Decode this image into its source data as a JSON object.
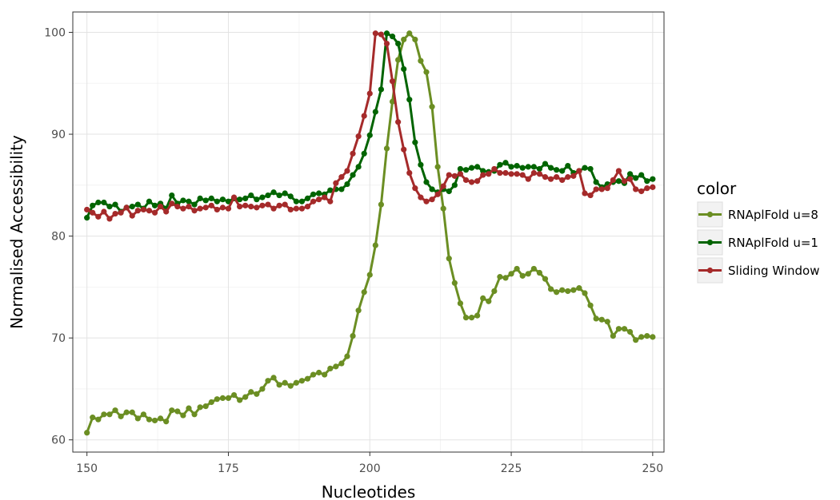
{
  "chart_data": {
    "type": "line",
    "xlabel": "Nucleotides",
    "ylabel": "Normalised Accessibility",
    "xlim": [
      147.5,
      252
    ],
    "ylim": [
      58.8,
      102
    ],
    "x_ticks": [
      150,
      175,
      200,
      225,
      250
    ],
    "y_ticks": [
      60,
      70,
      80,
      90,
      100
    ],
    "grid": true,
    "legend": {
      "title": "color",
      "position": "right"
    },
    "x": [
      150,
      151,
      152,
      153,
      154,
      155,
      156,
      157,
      158,
      159,
      160,
      161,
      162,
      163,
      164,
      165,
      166,
      167,
      168,
      169,
      170,
      171,
      172,
      173,
      174,
      175,
      176,
      177,
      178,
      179,
      180,
      181,
      182,
      183,
      184,
      185,
      186,
      187,
      188,
      189,
      190,
      191,
      192,
      193,
      194,
      195,
      196,
      197,
      198,
      199,
      200,
      201,
      202,
      203,
      204,
      205,
      206,
      207,
      208,
      209,
      210,
      211,
      212,
      213,
      214,
      215,
      216,
      217,
      218,
      219,
      220,
      221,
      222,
      223,
      224,
      225,
      226,
      227,
      228,
      229,
      230,
      231,
      232,
      233,
      234,
      235,
      236,
      237,
      238,
      239,
      240,
      241,
      242,
      243,
      244,
      245,
      246,
      247,
      248,
      249,
      250
    ],
    "series": [
      {
        "name": "RNAplFold u=8",
        "color": "#6b8e23",
        "values": [
          60.7,
          62.2,
          62.0,
          62.5,
          62.5,
          62.9,
          62.3,
          62.7,
          62.7,
          62.1,
          62.5,
          62.0,
          61.9,
          62.1,
          61.8,
          62.9,
          62.8,
          62.4,
          63.1,
          62.5,
          63.2,
          63.3,
          63.7,
          64.0,
          64.1,
          64.1,
          64.4,
          63.9,
          64.2,
          64.7,
          64.5,
          65.0,
          65.8,
          66.1,
          65.4,
          65.6,
          65.3,
          65.6,
          65.8,
          66.0,
          66.4,
          66.6,
          66.4,
          67.0,
          67.2,
          67.5,
          68.2,
          70.2,
          72.7,
          74.5,
          76.2,
          79.1,
          83.1,
          88.6,
          93.2,
          97.3,
          99.3,
          99.9,
          99.3,
          97.2,
          96.1,
          92.7,
          86.8,
          82.7,
          77.8,
          75.4,
          73.4,
          72.0,
          72.0,
          72.2,
          73.9,
          73.6,
          74.6,
          76.0,
          75.9,
          76.3,
          76.8,
          76.1,
          76.3,
          76.8,
          76.4,
          75.8,
          74.8,
          74.5,
          74.7,
          74.6,
          74.7,
          74.9,
          74.4,
          73.2,
          71.9,
          71.8,
          71.6,
          70.2,
          70.9,
          70.9,
          70.6,
          69.8,
          70.1,
          70.2,
          70.1
        ]
      },
      {
        "name": "RNAplFold u=1",
        "color": "#006400",
        "values": [
          81.8,
          83.0,
          83.3,
          83.3,
          82.9,
          83.1,
          82.4,
          82.8,
          82.9,
          83.1,
          82.7,
          83.4,
          83.0,
          83.2,
          82.7,
          84.0,
          83.2,
          83.5,
          83.4,
          83.1,
          83.7,
          83.5,
          83.7,
          83.4,
          83.6,
          83.4,
          83.7,
          83.6,
          83.7,
          84.0,
          83.6,
          83.8,
          84.0,
          84.3,
          84.0,
          84.2,
          83.9,
          83.4,
          83.4,
          83.7,
          84.1,
          84.2,
          84.1,
          84.5,
          84.6,
          84.6,
          85.1,
          86.0,
          86.8,
          88.1,
          89.9,
          92.2,
          94.4,
          99.9,
          99.6,
          98.9,
          96.4,
          93.4,
          89.2,
          87.0,
          85.3,
          84.6,
          84.3,
          84.6,
          84.4,
          85.0,
          86.6,
          86.5,
          86.7,
          86.8,
          86.4,
          86.3,
          86.4,
          87.0,
          87.2,
          86.8,
          86.9,
          86.7,
          86.8,
          86.8,
          86.6,
          87.1,
          86.7,
          86.5,
          86.4,
          86.9,
          86.2,
          86.4,
          86.7,
          86.6,
          85.3,
          84.8,
          85.1,
          85.3,
          85.4,
          85.2,
          86.1,
          85.7,
          86.0,
          85.4,
          85.6
        ]
      },
      {
        "name": "Sliding Window",
        "color": "#a52a2a",
        "values": [
          82.6,
          82.3,
          81.9,
          82.4,
          81.7,
          82.2,
          82.3,
          82.8,
          82.0,
          82.5,
          82.6,
          82.5,
          82.3,
          82.9,
          82.4,
          83.2,
          82.9,
          82.7,
          82.9,
          82.5,
          82.7,
          82.8,
          83.0,
          82.6,
          82.8,
          82.7,
          83.8,
          82.9,
          83.0,
          82.9,
          82.8,
          83.0,
          83.1,
          82.7,
          83.0,
          83.1,
          82.6,
          82.7,
          82.7,
          82.9,
          83.4,
          83.6,
          83.8,
          83.4,
          85.2,
          85.8,
          86.4,
          88.1,
          89.8,
          91.8,
          94.0,
          99.9,
          99.8,
          98.9,
          95.2,
          91.2,
          88.5,
          86.2,
          84.7,
          83.8,
          83.4,
          83.6,
          84.1,
          84.9,
          86.0,
          85.9,
          86.1,
          85.5,
          85.3,
          85.4,
          86.0,
          86.1,
          86.6,
          86.2,
          86.2,
          86.1,
          86.1,
          86.0,
          85.6,
          86.2,
          86.1,
          85.8,
          85.6,
          85.8,
          85.5,
          85.8,
          85.9,
          86.4,
          84.2,
          84.0,
          84.6,
          84.6,
          84.7,
          85.5,
          86.4,
          85.4,
          85.6,
          84.6,
          84.4,
          84.7,
          84.8
        ]
      }
    ]
  }
}
